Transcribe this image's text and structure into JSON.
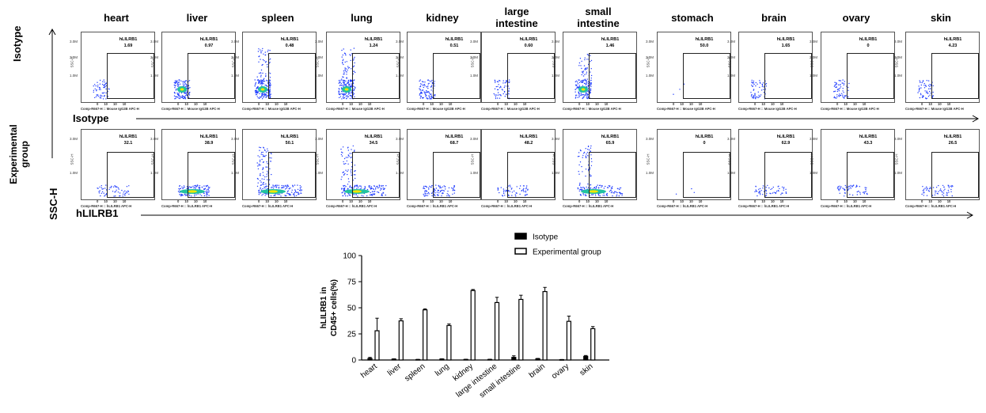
{
  "tissues": [
    "heart",
    "liver",
    "spleen",
    "lung",
    "kidney",
    "large intestine",
    "small intestine",
    "stomach",
    "brain",
    "ovary",
    "skin"
  ],
  "tissue_headers": [
    {
      "line1": "heart",
      "line2": ""
    },
    {
      "line1": "liver",
      "line2": ""
    },
    {
      "line1": "spleen",
      "line2": ""
    },
    {
      "line1": "lung",
      "line2": ""
    },
    {
      "line1": "kidney",
      "line2": ""
    },
    {
      "line1": "large",
      "line2": "intestine"
    },
    {
      "line1": "small",
      "line2": "intestine"
    },
    {
      "line1": "stomach",
      "line2": ""
    },
    {
      "line1": "brain",
      "line2": ""
    },
    {
      "line1": "ovary",
      "line2": ""
    },
    {
      "line1": "skin",
      "line2": ""
    }
  ],
  "row_labels": {
    "isotype": "Isotype",
    "experimental_line1": "Experimental",
    "experimental_line2": "group",
    "ssc": "SSC-H"
  },
  "axis_arrow_labels": {
    "isotype": "Isotype",
    "hlilrb1": "hLILRB1"
  },
  "gate_name": "hLILRB1",
  "ssc_axis_short": "SSC-H",
  "flow_yticks": [
    "3.0M",
    "2.0M",
    "1.0M"
  ],
  "flow_xticks": [
    "0",
    "10",
    "10",
    "10"
  ],
  "isotype_xaxis": "Comp-R667-H :: Mouse IgG2B APC-H",
  "experimental_xaxis": "Comp-R667-H :: hLILRB1 APC-H",
  "isotype_values": [
    "1.69",
    "0.97",
    "0.48",
    "1.24",
    "0.51",
    "0.60",
    "1.46",
    "50.0",
    "1.65",
    "0",
    "4.23"
  ],
  "experimental_values": [
    "32.1",
    "38.9",
    "50.1",
    "34.5",
    "68.7",
    "48.2",
    "65.9",
    "0",
    "62.9",
    "43.3",
    "26.5"
  ],
  "density_levels": [
    1,
    3,
    5,
    5,
    2,
    1,
    4,
    0,
    1,
    1,
    1
  ],
  "colors": {
    "isotype_bar": "#000000",
    "experimental_bar": "#ffffff",
    "density_low": "#1f3cff",
    "density_mid": "#22c3a0",
    "density_high": "#f2e600"
  },
  "chart_data": {
    "type": "bar",
    "categories": [
      "heart",
      "liver",
      "spleen",
      "lung",
      "kidney",
      "large intestine",
      "small intestine",
      "brain",
      "ovary",
      "skin"
    ],
    "series": [
      {
        "name": "Isotype",
        "values": [
          1.5,
          0.8,
          0.4,
          0.9,
          0.5,
          0.5,
          2.5,
          1.2,
          0.3,
          3.5
        ],
        "errors": [
          1.0,
          0.3,
          0.2,
          0.2,
          0.2,
          0.2,
          1.5,
          0.3,
          0.2,
          0.8
        ]
      },
      {
        "name": "Experimental group",
        "values": [
          28,
          37.5,
          48,
          33,
          66.5,
          55,
          58,
          65.5,
          37,
          30
        ],
        "errors": [
          12,
          2,
          1,
          1.5,
          1,
          5,
          4,
          4,
          5,
          2
        ]
      }
    ],
    "ylabel_line1": "hLILRB1 in",
    "ylabel_line2": "CD45+ cells(%)",
    "ylim": [
      0,
      100
    ],
    "yticks": [
      "0",
      "25",
      "50",
      "75",
      "100"
    ],
    "legend_placement": "top",
    "grid": false
  }
}
